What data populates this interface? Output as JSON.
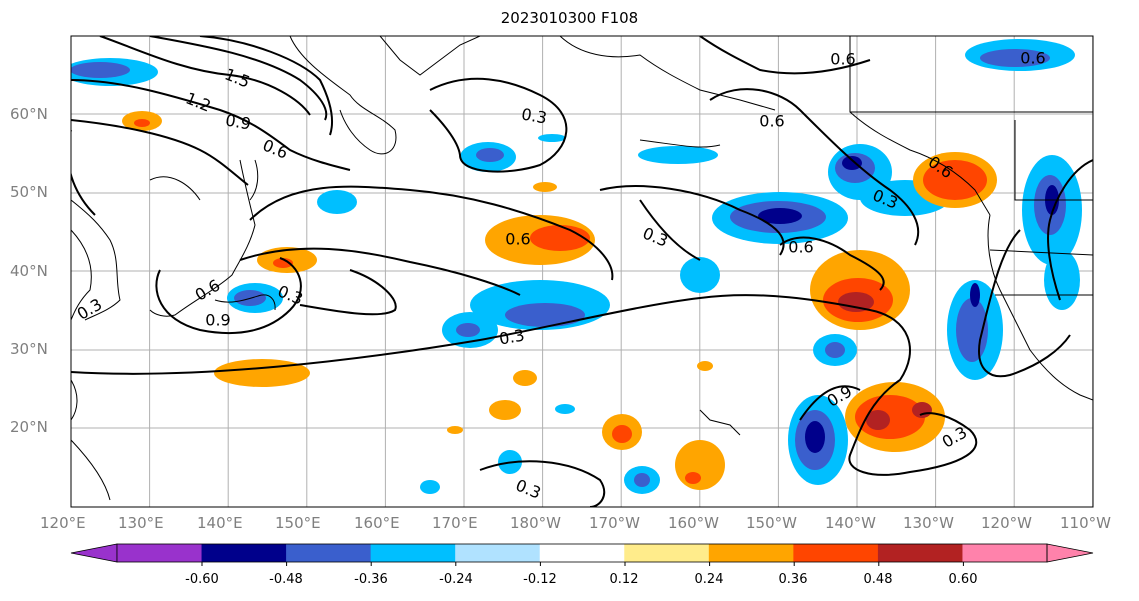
{
  "title": "2023010300 F108",
  "lat_labels": [
    "60°N",
    "50°N",
    "40°N",
    "30°N",
    "20°N"
  ],
  "lon_labels": [
    "120°E",
    "130°E",
    "140°E",
    "150°E",
    "160°E",
    "170°E",
    "180°W",
    "170°W",
    "160°W",
    "150°W",
    "140°W",
    "130°W",
    "120°W",
    "110°W"
  ],
  "contour_labels": [
    "1.5",
    "1.2",
    "0.9",
    "0.6",
    "0.3",
    "0.6",
    "0.3",
    "0.6",
    "0.3",
    "0.6",
    "0.6",
    "0.6",
    "0.6",
    "0.3",
    "0.6",
    "0.3",
    "0.9",
    "0.3",
    "0.9",
    "0.3",
    "0.3"
  ],
  "colorbar": {
    "colors": [
      "#9932cc",
      "#00008b",
      "#3a5fcd",
      "#00bfff",
      "#b0e2ff",
      "#ffffff",
      "#ffec8b",
      "#ffa500",
      "#ff4500",
      "#b22222",
      "#ff82ab"
    ],
    "tick_labels": [
      "-0.60",
      "-0.48",
      "-0.36",
      "-0.24",
      "-0.12",
      "0.12",
      "0.24",
      "0.36",
      "0.48",
      "0.60"
    ]
  }
}
